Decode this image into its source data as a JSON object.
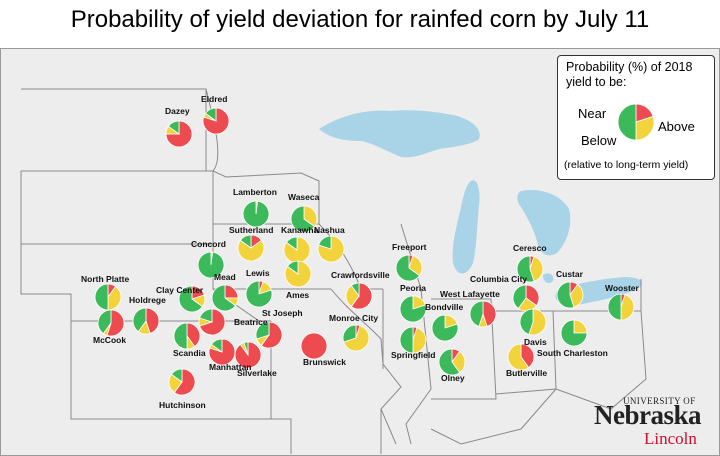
{
  "title": "Probability of yield deviation for rainfed corn by July 11",
  "legend": {
    "title_line1": "Probability (%) of 2018",
    "title_line2": "yield to be:",
    "near": "Near",
    "below": "Below",
    "above": "Above",
    "note": "(relative to long-term yield)"
  },
  "colors": {
    "below": "#ee4b50",
    "near": "#f2d33c",
    "above": "#3cb95a",
    "water": "#a9d3e6",
    "land": "#ededed",
    "border": "#8a8a8a"
  },
  "logo": {
    "univ": "UNIVERSITY OF",
    "name": "Nebraska",
    "campus": "Lincoln"
  },
  "legend_example": {
    "below": 20,
    "near": 30,
    "above": 50
  },
  "sites": [
    {
      "name": "Dazey",
      "below": 75,
      "near": 10,
      "above": 15
    },
    {
      "name": "Eldred",
      "below": 80,
      "near": 5,
      "above": 15
    },
    {
      "name": "Lamberton",
      "below": 0,
      "near": 2,
      "above": 98
    },
    {
      "name": "Waseca",
      "below": 0,
      "near": 35,
      "above": 65
    },
    {
      "name": "Sutherland",
      "below": 15,
      "near": 70,
      "above": 15
    },
    {
      "name": "Kanawha",
      "below": 0,
      "near": 85,
      "above": 15
    },
    {
      "name": "Nashua",
      "below": 0,
      "near": 80,
      "above": 20
    },
    {
      "name": "Concord",
      "below": 0,
      "near": 2,
      "above": 98
    },
    {
      "name": "Lewis",
      "below": 5,
      "near": 15,
      "above": 80
    },
    {
      "name": "Ames",
      "below": 0,
      "near": 85,
      "above": 15
    },
    {
      "name": "Crawfordsville",
      "below": 60,
      "near": 30,
      "above": 10
    },
    {
      "name": "Freeport",
      "below": 5,
      "near": 30,
      "above": 65
    },
    {
      "name": "Ceresco",
      "below": 5,
      "near": 40,
      "above": 55
    },
    {
      "name": "North Platte",
      "below": 10,
      "near": 40,
      "above": 50
    },
    {
      "name": "Clay Center",
      "below": 20,
      "near": 15,
      "above": 65
    },
    {
      "name": "Mead",
      "below": 25,
      "near": 10,
      "above": 65
    },
    {
      "name": "Holdrege",
      "below": 45,
      "near": 15,
      "above": 40
    },
    {
      "name": "McCook",
      "below": 55,
      "near": 5,
      "above": 40
    },
    {
      "name": "Beatrice",
      "below": 70,
      "near": 10,
      "above": 20
    },
    {
      "name": "St Joseph",
      "below": 60,
      "near": 10,
      "above": 30
    },
    {
      "name": "Scandia",
      "below": 40,
      "near": 10,
      "above": 50
    },
    {
      "name": "Manhattan",
      "below": 80,
      "near": 5,
      "above": 15
    },
    {
      "name": "Silverlake",
      "below": 90,
      "near": 5,
      "above": 5
    },
    {
      "name": "Brunswick",
      "below": 100,
      "near": 0,
      "above": 0
    },
    {
      "name": "Monroe City",
      "below": 5,
      "near": 65,
      "above": 30
    },
    {
      "name": "Peoria",
      "below": 0,
      "near": 20,
      "above": 80
    },
    {
      "name": "Bondville",
      "below": 0,
      "near": 20,
      "above": 80
    },
    {
      "name": "Springfield",
      "below": 5,
      "near": 45,
      "above": 50
    },
    {
      "name": "Olney",
      "below": 10,
      "near": 30,
      "above": 60
    },
    {
      "name": "West Lafayette",
      "below": 45,
      "near": 10,
      "above": 45
    },
    {
      "name": "Columbia City",
      "below": 35,
      "near": 25,
      "above": 40
    },
    {
      "name": "Custar",
      "below": 10,
      "near": 35,
      "above": 55
    },
    {
      "name": "Wooster",
      "below": 5,
      "near": 45,
      "above": 50
    },
    {
      "name": "Davis",
      "below": 0,
      "near": 55,
      "above": 45
    },
    {
      "name": "South Charleston",
      "below": 0,
      "near": 25,
      "above": 75
    },
    {
      "name": "Butlerville",
      "below": 40,
      "near": 60,
      "above": 0
    },
    {
      "name": "Hutchinson",
      "below": 60,
      "near": 25,
      "above": 15
    }
  ]
}
